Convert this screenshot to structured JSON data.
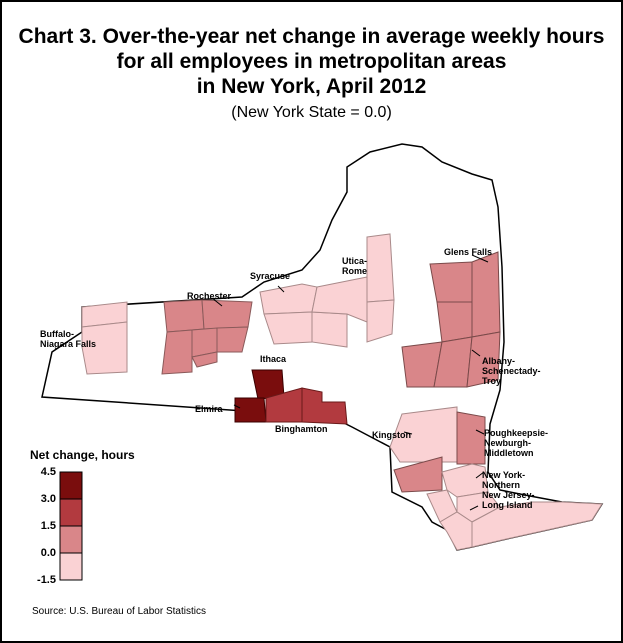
{
  "title_lines": [
    "Chart 3. Over-the-year net change in average weekly hours",
    "for all employees in metropolitan areas",
    "in New York, April 2012"
  ],
  "subtitle": "(New York State = 0.0)",
  "source": "Source: U.S. Bureau of Labor Statistics",
  "legend": {
    "title": "Net change, hours",
    "ticks": [
      "4.5",
      "3.0",
      "1.5",
      "0.0",
      "-1.5"
    ],
    "bins": [
      {
        "range": "3.0 to 4.5",
        "color": "#7a0d0d"
      },
      {
        "range": "1.5 to 3.0",
        "color": "#b23a3f"
      },
      {
        "range": "0.0 to 1.5",
        "color": "#d98689"
      },
      {
        "range": "-1.5 to 0.0",
        "color": "#fad2d4"
      }
    ]
  },
  "regions": {
    "buffalo": {
      "name": "Buffalo-\nNiagara Falls",
      "bin": "-1.5 to 0.0",
      "color": "#fad2d4"
    },
    "rochester": {
      "name": "Rochester",
      "bin": "0.0 to 1.5",
      "color": "#d98689"
    },
    "syracuse": {
      "name": "Syracuse",
      "bin": "-1.5 to 0.0",
      "color": "#fad2d4"
    },
    "utica": {
      "name": "Utica-\nRome",
      "bin": "-1.5 to 0.0",
      "color": "#fad2d4"
    },
    "glens_falls": {
      "name": "Glens Falls",
      "bin": "0.0 to 1.5",
      "color": "#d98689"
    },
    "albany": {
      "name": "Albany-\nSchenectady-\nTroy",
      "bin": "0.0 to 1.5",
      "color": "#d98689"
    },
    "ithaca": {
      "name": "Ithaca",
      "bin": "3.0 to 4.5",
      "color": "#7a0d0d"
    },
    "elmira": {
      "name": "Elmira",
      "bin": "3.0 to 4.5",
      "color": "#7a0d0d"
    },
    "binghamton": {
      "name": "Binghamton",
      "bin": "1.5 to 3.0",
      "color": "#b23a3f"
    },
    "kingston": {
      "name": "Kingston",
      "bin": "-1.5 to 0.0",
      "color": "#fad2d4"
    },
    "poughkeepsie": {
      "name": "Poughkeepsie-\nNewburgh-\nMiddletown",
      "bin": "0.0 to 1.5",
      "color": "#d98689"
    },
    "nyc": {
      "name": "New York-\nNorthern\nNew Jersey-\nLong Island",
      "bin": "-1.5 to 0.0",
      "color": "#fad2d4"
    }
  },
  "colors": {
    "state_outline": "#000000",
    "state_fill": "#ffffff",
    "county_line": "#7a5a5a",
    "border": "#000000"
  }
}
